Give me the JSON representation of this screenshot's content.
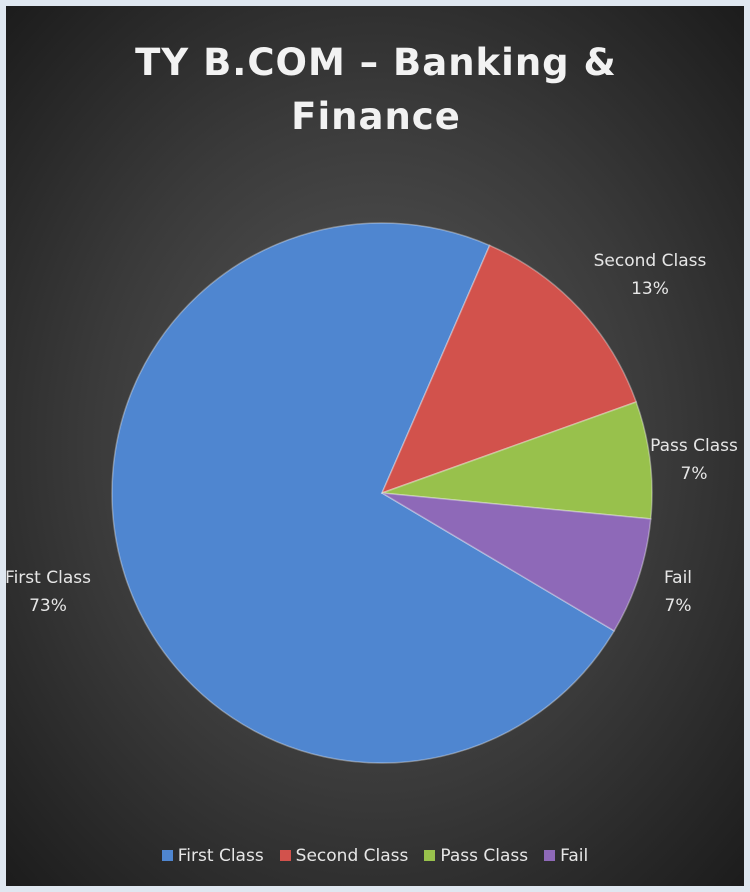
{
  "chart_data": {
    "type": "pie",
    "title": "TY B.COM – Banking & Finance",
    "categories": [
      "First Class",
      "Second Class",
      "Pass Class",
      "Fail"
    ],
    "values": [
      73,
      13,
      7,
      7
    ],
    "value_labels": [
      "73%",
      "13%",
      "7%",
      "7%"
    ],
    "colors": [
      "#4f86d0",
      "#d2524c",
      "#98c14c",
      "#8e69b8"
    ],
    "legend": "bottom"
  }
}
